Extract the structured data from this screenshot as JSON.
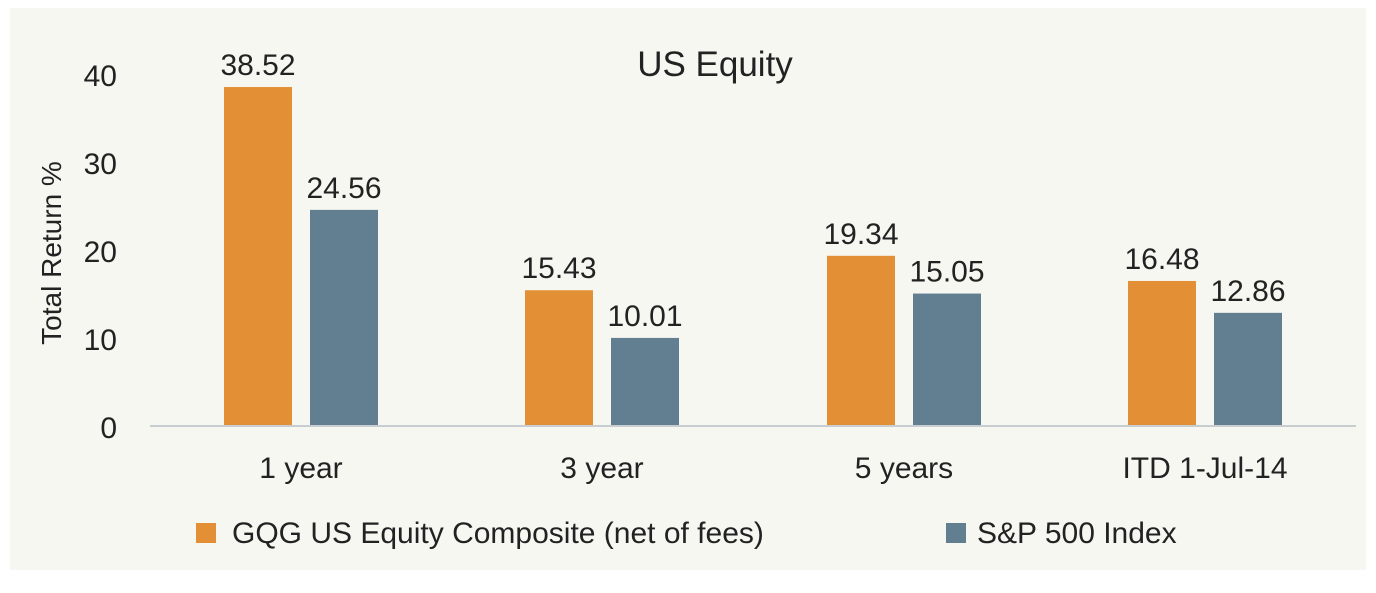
{
  "chart_data": {
    "type": "bar",
    "title": "US Equity",
    "xlabel": "",
    "ylabel": "Total Return %",
    "ylim": [
      0,
      40
    ],
    "yticks": [
      0,
      10,
      20,
      30,
      40
    ],
    "categories": [
      "1 year",
      "3 year",
      "5 years",
      "ITD 1-Jul-14"
    ],
    "series": [
      {
        "name": "GQG US Equity Composite (net of fees)",
        "color": "#E38F36",
        "values": [
          38.52,
          15.43,
          19.34,
          16.48
        ]
      },
      {
        "name": "S&P 500 Index",
        "color": "#617F91",
        "values": [
          24.56,
          10.01,
          15.05,
          12.86
        ]
      }
    ],
    "data_labels": [
      [
        "38.52",
        "15.43",
        "19.34",
        "16.48"
      ],
      [
        "24.56",
        "10.01",
        "15.05",
        "12.86"
      ]
    ],
    "grid": false,
    "legend_position": "bottom",
    "background_color": "#F7F7F2",
    "axis_color": "#C8CDD2"
  }
}
